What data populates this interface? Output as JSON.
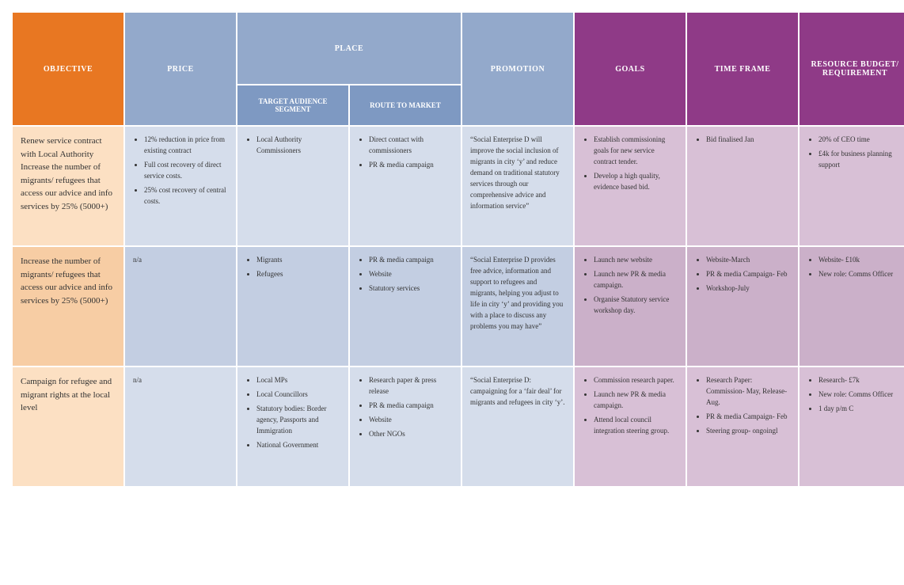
{
  "headers": {
    "objective": "OBJECTIVE",
    "price": "PRICE",
    "place": "PLACE",
    "promotion": "PROMOTION",
    "goals": "GOALS",
    "timeframe": "TIME FRAME",
    "resource": "RESOURCE BUDGET/ REQUIREMENT",
    "target_audience": "TARGET AUDIENCE SEGMENT",
    "route_to_market": "ROUTE TO MARKET"
  },
  "colors": {
    "orange": "#e87722",
    "blue_header": "#93a9cb",
    "blue_sub": "#7e99c2",
    "purple_header": "#8f3a87",
    "blue_row_light": "#d5ddeb",
    "blue_row_dark": "#c3cee2",
    "purple_row_light": "#d8c0d6",
    "purple_row_dark": "#cbb0c9",
    "obj_row_light": "#fce0c3",
    "obj_row_dark": "#f7cda4",
    "gap": "#ffffff"
  },
  "rows": [
    {
      "objective": "Renew service contract with Local Authority Increase the number of migrants/ refugees that access our advice and info services by 25% (5000+)",
      "price": [
        "12% reduction in price from existing contract",
        "Full cost recovery of direct service costs.",
        "25% cost recovery of central costs."
      ],
      "target_audience": [
        "Local Authority Commissioners"
      ],
      "route": [
        "Direct contact with commissioners",
        "PR & media campaign"
      ],
      "promotion": "“Social Enterprise D will improve the social inclusion of migrants in city ‘y’ and reduce demand on traditional statutory services through our comprehensive advice and information service”",
      "goals": [
        "Establish commissioning goals for new service contract tender.",
        "Develop a high quality, evidence based bid."
      ],
      "timeframe": [
        "Bid finalised Jan"
      ],
      "resource": [
        "20% of CEO time",
        "£4k for business planning support"
      ]
    },
    {
      "objective": "Increase the number of migrants/ refugees that access our advice and info services by 25% (5000+)",
      "price_text": "n/a",
      "target_audience": [
        "Migrants",
        "Refugees"
      ],
      "route": [
        "PR & media campaign",
        "Website",
        "Statutory services"
      ],
      "promotion": "“Social Enterprise D provides free advice, information and support to refugees and migrants, helping you adjust to life in city ‘y’ and providing you with a place to discuss any problems you may have”",
      "goals": [
        "Launch new website",
        "Launch new PR & media campaign.",
        "Organise Statutory service workshop day."
      ],
      "timeframe": [
        "Website-March",
        "PR & media Campaign- Feb",
        "Workshop-July"
      ],
      "resource": [
        "Website- £10k",
        "New role: Comms Officer"
      ]
    },
    {
      "objective": "Campaign for refugee and migrant rights at the local level",
      "price_text": "n/a",
      "target_audience": [
        "Local MPs",
        "Local Councillors",
        "Statutory bodies: Border agency, Passports and Immigration",
        "National Government"
      ],
      "route": [
        "Research paper & press release",
        "PR & media campaign",
        "Website",
        "Other NGOs"
      ],
      "promotion": "“Social Enterprise D: campaigning for a ‘fair deal’ for migrants and refugees in city ‘y’.",
      "goals": [
        "Commission research paper.",
        "Launch new PR & media campaign.",
        "Attend local council integration steering group."
      ],
      "timeframe": [
        "Research Paper: Commission- May, Release- Aug.",
        "PR & media Campaign- Feb",
        "Steering group- ongoingl"
      ],
      "resource": [
        "Research- £7k",
        "New role: Comms Officer",
        "1 day p/m C"
      ]
    }
  ]
}
